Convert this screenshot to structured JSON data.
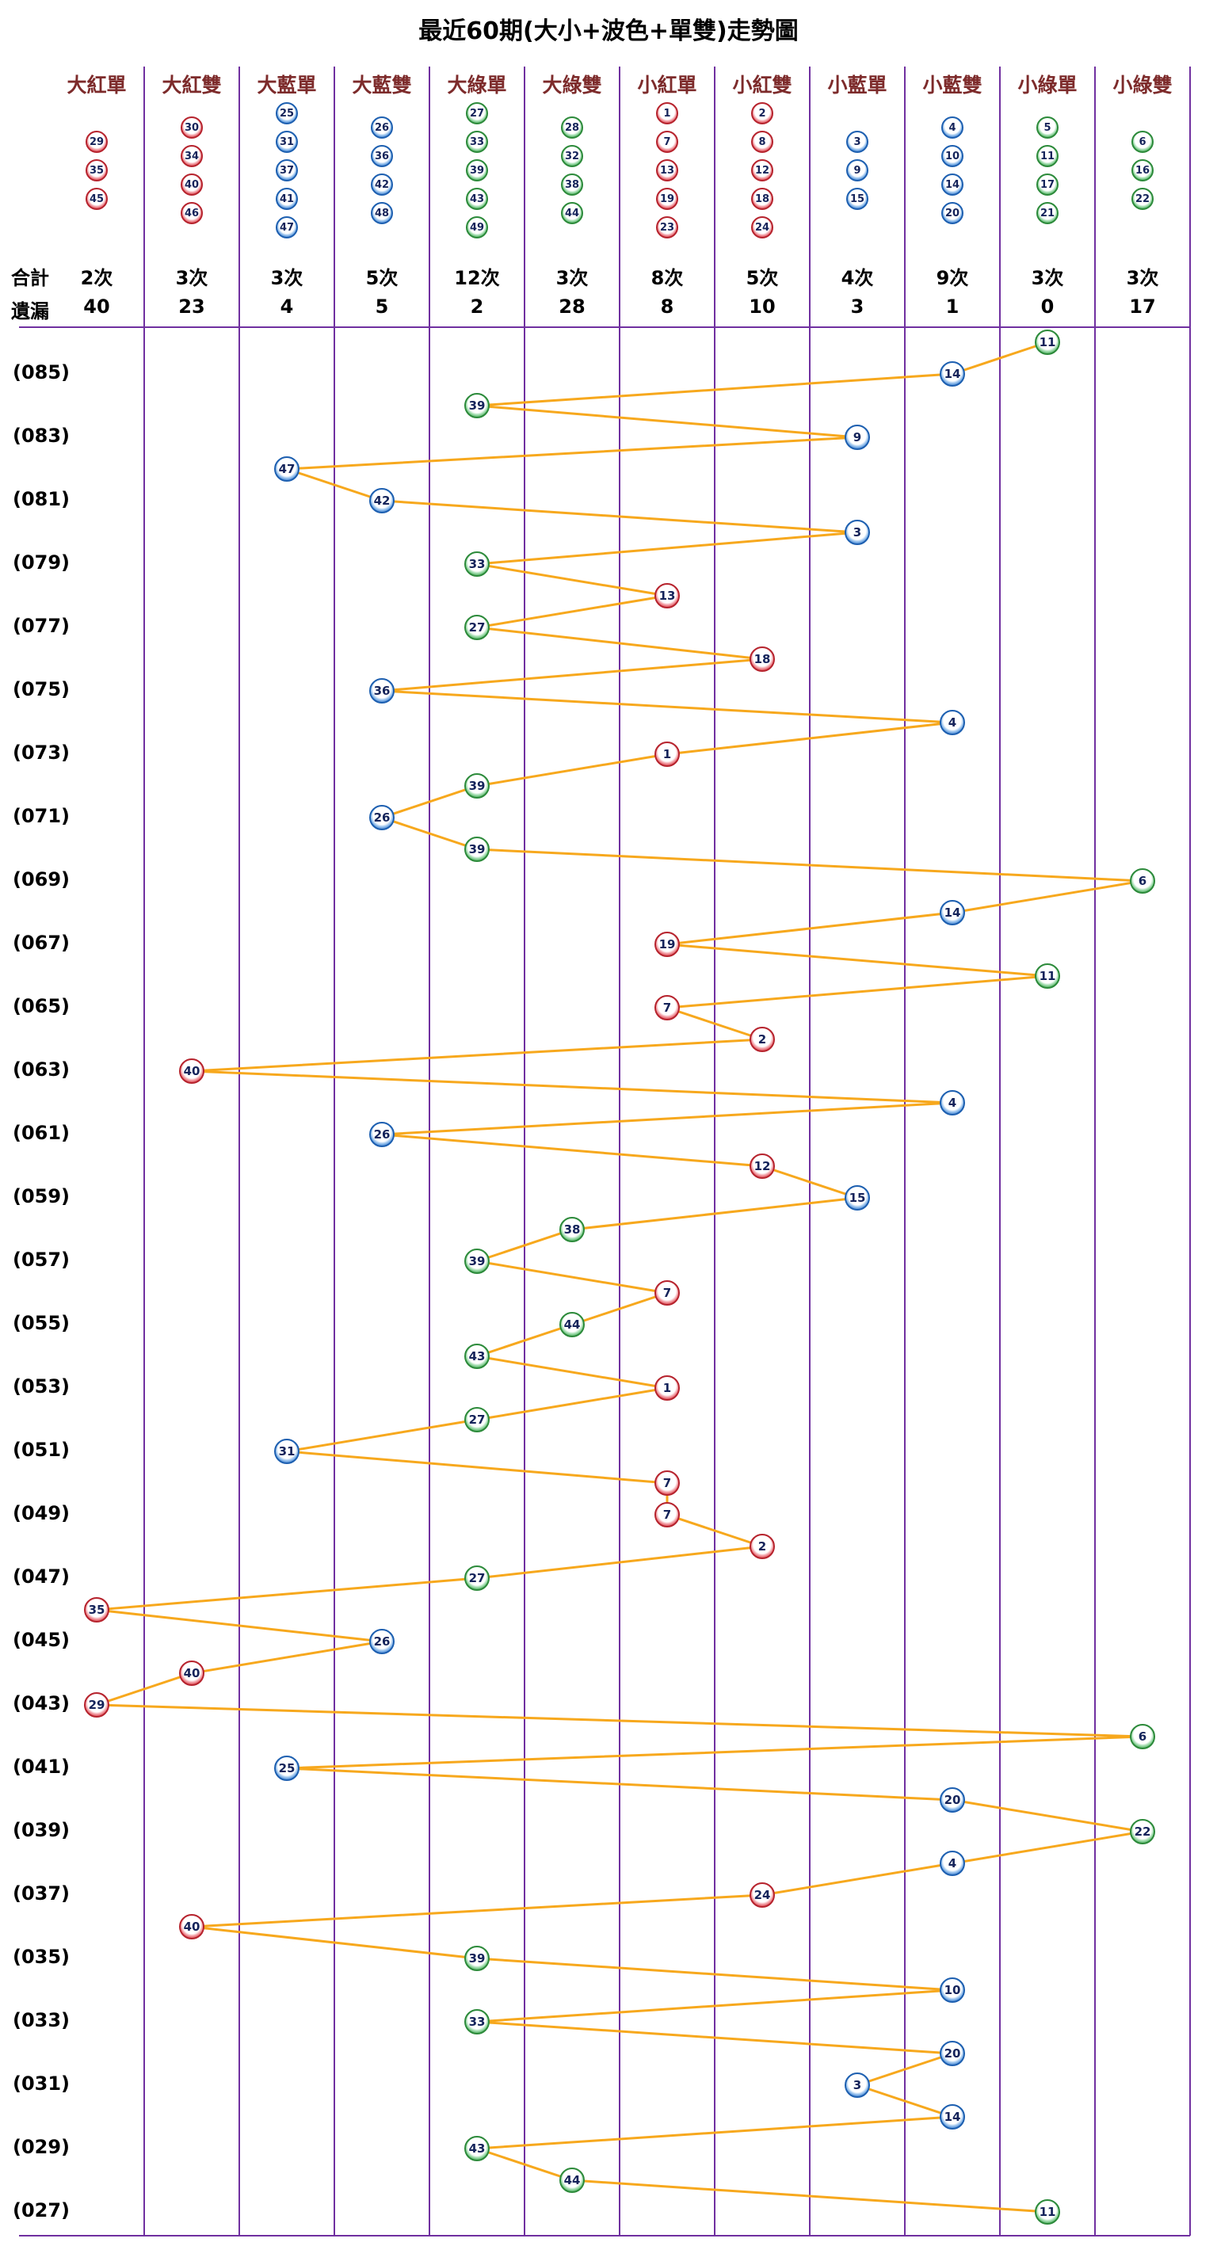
{
  "title": "最近60期(大小+波色+單雙)走勢圖",
  "summary": {
    "total_label": "合計",
    "miss_label": "遺漏"
  },
  "colors": {
    "red": "#d73a44",
    "blue": "#3578cc",
    "green": "#42a452",
    "line": "#f7a81d",
    "grid": "#7030a0",
    "header_text": "#7d2b2b"
  },
  "columns": [
    {
      "label": "大紅單",
      "color": "red",
      "numbers": [
        29,
        35,
        45
      ],
      "total": "2次",
      "miss": "40"
    },
    {
      "label": "大紅雙",
      "color": "red",
      "numbers": [
        30,
        34,
        40,
        46
      ],
      "total": "3次",
      "miss": "23"
    },
    {
      "label": "大藍單",
      "color": "blue",
      "numbers": [
        25,
        31,
        37,
        41,
        47
      ],
      "total": "3次",
      "miss": "4"
    },
    {
      "label": "大藍雙",
      "color": "blue",
      "numbers": [
        26,
        36,
        42,
        48
      ],
      "total": "5次",
      "miss": "5"
    },
    {
      "label": "大綠單",
      "color": "green",
      "numbers": [
        27,
        33,
        39,
        43,
        49
      ],
      "total": "12次",
      "miss": "2"
    },
    {
      "label": "大綠雙",
      "color": "green",
      "numbers": [
        28,
        32,
        38,
        44
      ],
      "total": "3次",
      "miss": "28"
    },
    {
      "label": "小紅單",
      "color": "red",
      "numbers": [
        1,
        7,
        13,
        19,
        23
      ],
      "total": "8次",
      "miss": "8"
    },
    {
      "label": "小紅雙",
      "color": "red",
      "numbers": [
        2,
        8,
        12,
        18,
        24
      ],
      "total": "5次",
      "miss": "10"
    },
    {
      "label": "小藍單",
      "color": "blue",
      "numbers": [
        3,
        9,
        15
      ],
      "total": "4次",
      "miss": "3"
    },
    {
      "label": "小藍雙",
      "color": "blue",
      "numbers": [
        4,
        10,
        14,
        20
      ],
      "total": "9次",
      "miss": "1"
    },
    {
      "label": "小綠單",
      "color": "green",
      "numbers": [
        5,
        11,
        17,
        21
      ],
      "total": "3次",
      "miss": "0"
    },
    {
      "label": "小綠雙",
      "color": "green",
      "numbers": [
        6,
        16,
        22
      ],
      "total": "3次",
      "miss": "17"
    }
  ],
  "chart_data": {
    "type": "scatter",
    "note": "Each row = one draw period (newest 086 at top to oldest 027 at bottom); n = drawn number, c = 0-based category column index, lab = visible period label",
    "rows": [
      {
        "p": 86,
        "lab": "",
        "n": 11,
        "c": 10
      },
      {
        "p": 85,
        "lab": "(085)",
        "n": 14,
        "c": 9
      },
      {
        "p": 84,
        "lab": "",
        "n": 39,
        "c": 4
      },
      {
        "p": 83,
        "lab": "(083)",
        "n": 9,
        "c": 8
      },
      {
        "p": 82,
        "lab": "",
        "n": 47,
        "c": 2
      },
      {
        "p": 81,
        "lab": "(081)",
        "n": 42,
        "c": 3
      },
      {
        "p": 80,
        "lab": "",
        "n": 3,
        "c": 8
      },
      {
        "p": 79,
        "lab": "(079)",
        "n": 33,
        "c": 4
      },
      {
        "p": 78,
        "lab": "",
        "n": 13,
        "c": 6
      },
      {
        "p": 77,
        "lab": "(077)",
        "n": 27,
        "c": 4
      },
      {
        "p": 76,
        "lab": "",
        "n": 18,
        "c": 7
      },
      {
        "p": 75,
        "lab": "(075)",
        "n": 36,
        "c": 3
      },
      {
        "p": 74,
        "lab": "",
        "n": 4,
        "c": 9
      },
      {
        "p": 73,
        "lab": "(073)",
        "n": 1,
        "c": 6
      },
      {
        "p": 72,
        "lab": "",
        "n": 39,
        "c": 4
      },
      {
        "p": 71,
        "lab": "(071)",
        "n": 26,
        "c": 3
      },
      {
        "p": 70,
        "lab": "",
        "n": 39,
        "c": 4
      },
      {
        "p": 69,
        "lab": "(069)",
        "n": 6,
        "c": 11
      },
      {
        "p": 68,
        "lab": "",
        "n": 14,
        "c": 9
      },
      {
        "p": 67,
        "lab": "(067)",
        "n": 19,
        "c": 6
      },
      {
        "p": 66,
        "lab": "",
        "n": 11,
        "c": 10
      },
      {
        "p": 65,
        "lab": "(065)",
        "n": 7,
        "c": 6
      },
      {
        "p": 64,
        "lab": "",
        "n": 2,
        "c": 7
      },
      {
        "p": 63,
        "lab": "(063)",
        "n": 40,
        "c": 1
      },
      {
        "p": 62,
        "lab": "",
        "n": 4,
        "c": 9
      },
      {
        "p": 61,
        "lab": "(061)",
        "n": 26,
        "c": 3
      },
      {
        "p": 60,
        "lab": "",
        "n": 12,
        "c": 7
      },
      {
        "p": 59,
        "lab": "(059)",
        "n": 15,
        "c": 8
      },
      {
        "p": 58,
        "lab": "",
        "n": 38,
        "c": 5
      },
      {
        "p": 57,
        "lab": "(057)",
        "n": 39,
        "c": 4
      },
      {
        "p": 56,
        "lab": "",
        "n": 7,
        "c": 6
      },
      {
        "p": 55,
        "lab": "(055)",
        "n": 44,
        "c": 5
      },
      {
        "p": 54,
        "lab": "",
        "n": 43,
        "c": 4
      },
      {
        "p": 53,
        "lab": "(053)",
        "n": 1,
        "c": 6
      },
      {
        "p": 52,
        "lab": "",
        "n": 27,
        "c": 4
      },
      {
        "p": 51,
        "lab": "(051)",
        "n": 31,
        "c": 2
      },
      {
        "p": 50,
        "lab": "",
        "n": 7,
        "c": 6
      },
      {
        "p": 49,
        "lab": "(049)",
        "n": 7,
        "c": 6
      },
      {
        "p": 48,
        "lab": "",
        "n": 2,
        "c": 7
      },
      {
        "p": 47,
        "lab": "(047)",
        "n": 27,
        "c": 4
      },
      {
        "p": 46,
        "lab": "",
        "n": 35,
        "c": 0
      },
      {
        "p": 45,
        "lab": "(045)",
        "n": 26,
        "c": 3
      },
      {
        "p": 44,
        "lab": "",
        "n": 40,
        "c": 1
      },
      {
        "p": 43,
        "lab": "(043)",
        "n": 29,
        "c": 0
      },
      {
        "p": 42,
        "lab": "",
        "n": 6,
        "c": 11
      },
      {
        "p": 41,
        "lab": "(041)",
        "n": 25,
        "c": 2
      },
      {
        "p": 40,
        "lab": "",
        "n": 20,
        "c": 9
      },
      {
        "p": 39,
        "lab": "(039)",
        "n": 22,
        "c": 11
      },
      {
        "p": 38,
        "lab": "",
        "n": 4,
        "c": 9
      },
      {
        "p": 37,
        "lab": "(037)",
        "n": 24,
        "c": 7
      },
      {
        "p": 36,
        "lab": "",
        "n": 40,
        "c": 1
      },
      {
        "p": 35,
        "lab": "(035)",
        "n": 39,
        "c": 4
      },
      {
        "p": 34,
        "lab": "",
        "n": 10,
        "c": 9
      },
      {
        "p": 33,
        "lab": "(033)",
        "n": 33,
        "c": 4
      },
      {
        "p": 32,
        "lab": "",
        "n": 20,
        "c": 9
      },
      {
        "p": 31,
        "lab": "(031)",
        "n": 3,
        "c": 8
      },
      {
        "p": 30,
        "lab": "",
        "n": 14,
        "c": 9
      },
      {
        "p": 29,
        "lab": "(029)",
        "n": 43,
        "c": 4
      },
      {
        "p": 28,
        "lab": "",
        "n": 44,
        "c": 5
      },
      {
        "p": 27,
        "lab": "(027)",
        "n": 11,
        "c": 10
      }
    ]
  }
}
